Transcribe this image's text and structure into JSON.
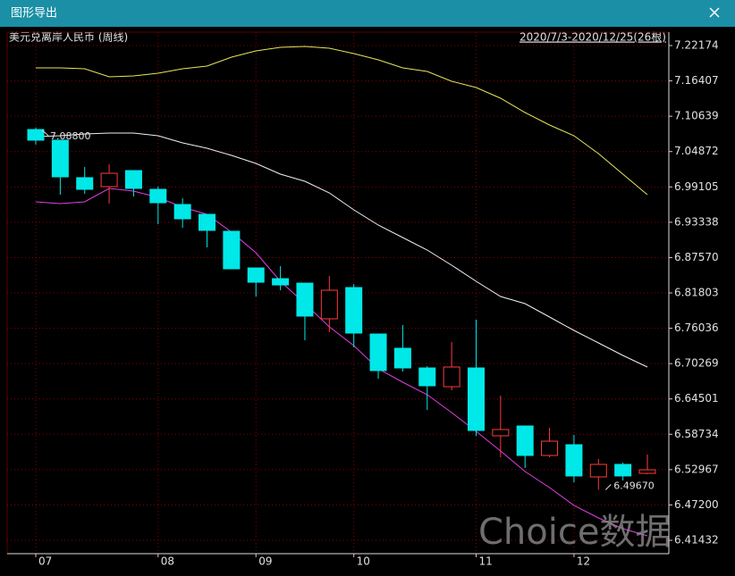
{
  "window": {
    "title": "图形导出"
  },
  "chart_data": {
    "type": "candlestick",
    "title": "美元兑离岸人民币 (周线)",
    "subtitle": "2020/7/3-2020/12/25(26根)",
    "watermark": "Choice数据",
    "categories": [
      "07",
      null,
      null,
      null,
      null,
      "08",
      null,
      null,
      null,
      "09",
      null,
      null,
      null,
      "10",
      null,
      null,
      null,
      null,
      "11",
      null,
      null,
      null,
      "12",
      null,
      null,
      null
    ],
    "open": [
      7.0847,
      7.0673,
      7.0061,
      6.9915,
      7.0177,
      6.9871,
      6.9623,
      6.9463,
      6.9186,
      6.8588,
      6.8413,
      6.834,
      6.7758,
      6.8268,
      6.751,
      6.7277,
      6.6956,
      6.665,
      6.6956,
      6.5849,
      6.6009,
      6.5528,
      6.5703,
      6.5178,
      6.5382,
      6.5236
    ],
    "high": [
      7.088,
      7.0673,
      7.0235,
      7.0279,
      7.0177,
      6.9915,
      6.9725,
      6.9463,
      6.9186,
      6.8588,
      6.8617,
      6.834,
      6.8457,
      6.8326,
      6.751,
      6.7656,
      6.6985,
      6.7379,
      6.7743,
      6.6504,
      6.6009,
      6.598,
      6.5863,
      6.5469,
      6.5411,
      6.5542
    ],
    "low": [
      7.06,
      6.9784,
      6.9798,
      6.9638,
      6.9754,
      6.9303,
      6.9244,
      6.8924,
      6.8574,
      6.8122,
      6.8224,
      6.7408,
      6.7539,
      6.7292,
      6.6781,
      6.6898,
      6.6271,
      6.6592,
      6.5849,
      6.5499,
      6.5324,
      6.5499,
      6.5091,
      6.4967,
      6.512,
      6.5222
    ],
    "close": [
      7.0673,
      7.0075,
      6.9871,
      7.0133,
      6.9886,
      6.9652,
      6.939,
      6.9201,
      6.8574,
      6.8355,
      6.8311,
      6.7802,
      6.8224,
      6.7525,
      6.6913,
      6.6956,
      6.6665,
      6.6971,
      6.5936,
      6.5951,
      6.5528,
      6.5761,
      6.5193,
      6.5382,
      6.5193,
      6.5294
    ],
    "up_color": "#ff3b3b",
    "down_color": "#00e8e8",
    "lines": [
      {
        "color": "#e6e65c",
        "values": [
          7.1853,
          7.1853,
          7.1838,
          7.1707,
          7.1722,
          7.1766,
          7.1838,
          7.1882,
          7.2028,
          7.213,
          7.2188,
          7.2203,
          7.2174,
          7.2086,
          7.1984,
          7.1853,
          7.1795,
          7.1634,
          7.1532,
          7.1358,
          7.1124,
          7.092,
          7.0745,
          7.0454,
          7.0119,
          6.9784
        ]
      },
      {
        "color": "#f0f0f0",
        "values": [
          7.0731,
          7.0745,
          7.0775,
          7.0789,
          7.0789,
          7.0745,
          7.0629,
          7.0541,
          7.0425,
          7.0294,
          7.0119,
          7.0002,
          6.9813,
          6.9536,
          6.9288,
          6.9084,
          6.888,
          6.8632,
          6.837,
          6.8122,
          6.8006,
          6.7787,
          6.7568,
          6.7364,
          6.716,
          6.6971
        ]
      },
      {
        "color": "#e040e0",
        "values": [
          6.9667,
          6.9638,
          6.9667,
          6.9886,
          6.9842,
          6.974,
          6.958,
          6.9463,
          6.9171,
          6.8836,
          6.837,
          6.8006,
          6.7627,
          6.7321,
          6.6942,
          6.6723,
          6.6519,
          6.6228,
          6.5921,
          6.5601,
          6.5266,
          6.5003,
          6.4712,
          6.4508,
          6.4333,
          6.4216
        ]
      }
    ],
    "annotations": [
      {
        "index": 0,
        "value": 7.088,
        "label": "7.08800"
      },
      {
        "index": 23,
        "value": 6.4967,
        "label": "6.49670"
      }
    ],
    "ylim": [
      6.3925,
      7.2436
    ],
    "yticks": [
      7.22174,
      7.16407,
      7.10639,
      7.04872,
      6.99105,
      6.93338,
      {
        "value": 6.8757,
        "label": "6.87570"
      },
      6.81803,
      6.76036,
      6.70269,
      6.64501,
      6.58734,
      6.52967,
      {
        "value": 6.472,
        "label": "6.47200"
      },
      6.41432
    ],
    "grid": true
  }
}
